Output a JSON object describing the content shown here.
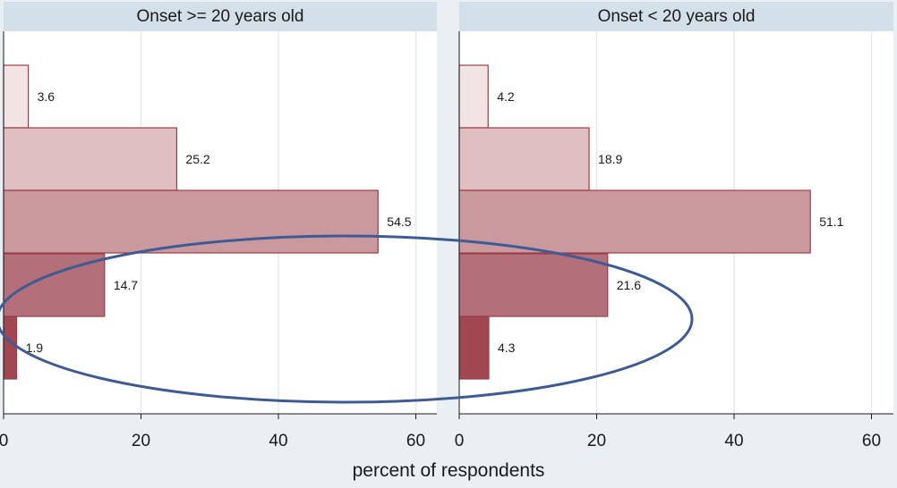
{
  "chart_data": {
    "type": "bar",
    "orientation": "horizontal",
    "xlabel": "percent of respondents",
    "xlim": [
      0,
      60
    ],
    "x_ticks": [
      "0",
      "20",
      "40",
      "60"
    ],
    "grid": true,
    "panels": [
      {
        "title": "Onset >= 20 years old",
        "values": [
          3.6,
          25.2,
          54.5,
          14.7,
          1.9
        ],
        "value_labels": [
          "3.6",
          "25.2",
          "54.5",
          "14.7",
          "1.9"
        ]
      },
      {
        "title": "Onset < 20 years old",
        "values": [
          4.2,
          18.9,
          51.1,
          21.6,
          4.3
        ],
        "value_labels": [
          "4.2",
          "18.9",
          "51.1",
          "21.6",
          "4.3"
        ]
      }
    ],
    "bar_colors": [
      "#f2e3e4",
      "#dfbfc2",
      "#c9999e",
      "#b3707a",
      "#a14752"
    ],
    "bar_edge_color": "#9b3e48",
    "annotation": {
      "shape": "ellipse",
      "color": "#3e5b94"
    }
  }
}
